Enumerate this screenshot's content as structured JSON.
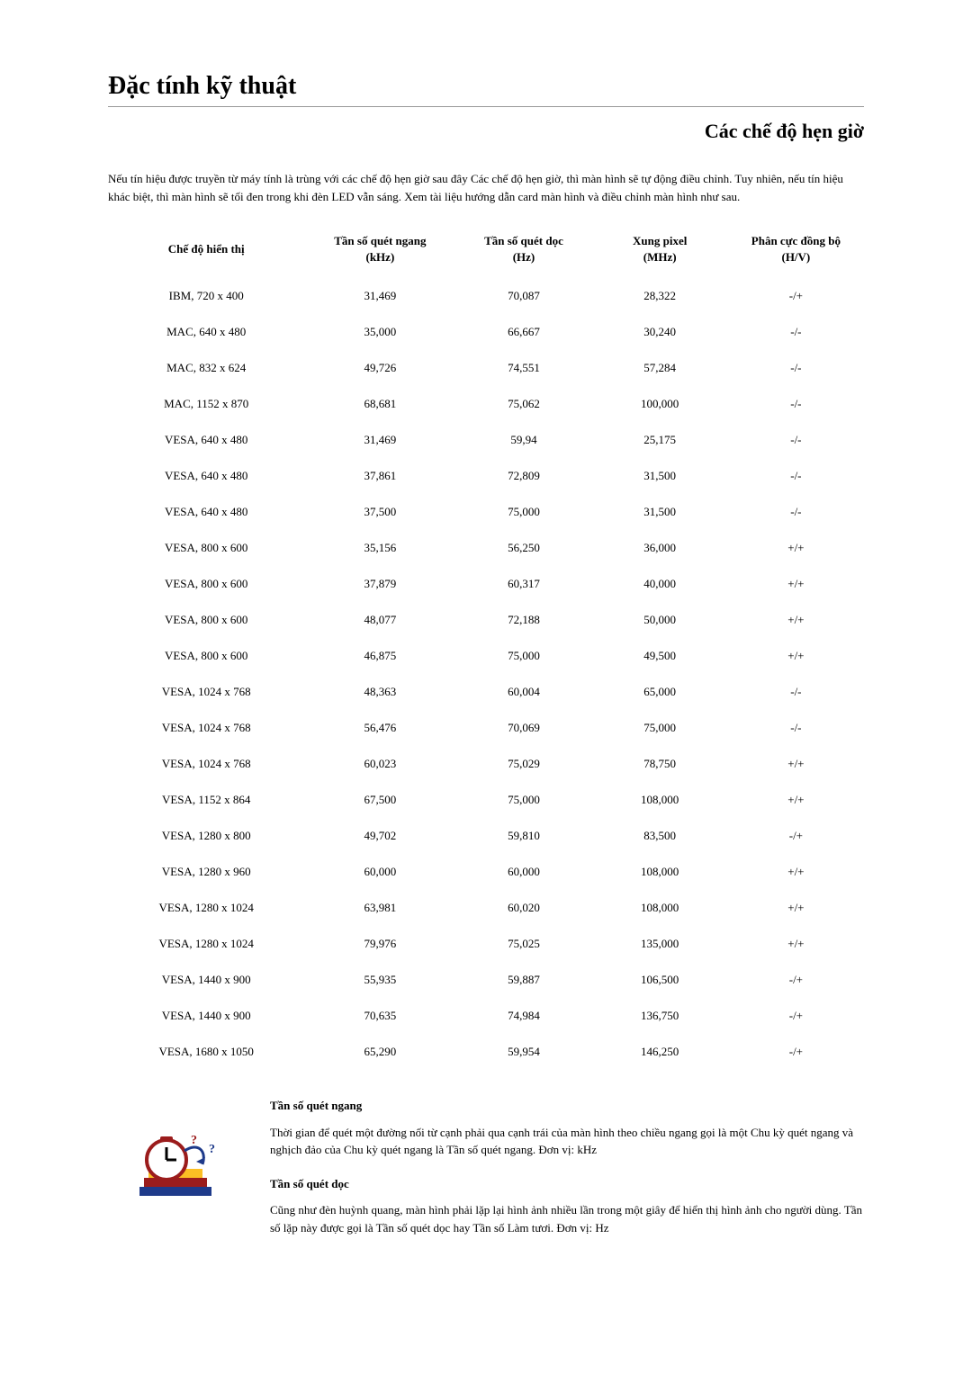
{
  "title": "Đặc tính kỹ thuật",
  "section_title": "Các chế độ hẹn giờ",
  "intro": "Nếu tín hiệu được truyền từ máy tính là trùng với các chế độ hẹn giờ sau đây Các chế độ hẹn giờ, thì màn hình sẽ tự động điều chỉnh. Tuy nhiên, nếu tín hiệu khác biệt, thì màn hình sẽ tối đen trong khi đèn LED vẫn sáng. Xem tài liệu hướng dẫn card màn hình và điều chỉnh màn hình như sau.",
  "table": {
    "columns": [
      "Chế độ hiển thị",
      "Tần số quét ngang (kHz)",
      "Tần số quét dọc (Hz)",
      "Xung pixel (MHz)",
      "Phân cực đồng bộ (H/V)"
    ],
    "rows": [
      [
        "IBM, 720 x 400",
        "31,469",
        "70,087",
        "28,322",
        "-/+"
      ],
      [
        "MAC, 640 x 480",
        "35,000",
        "66,667",
        "30,240",
        "-/-"
      ],
      [
        "MAC, 832 x 624",
        "49,726",
        "74,551",
        "57,284",
        "-/-"
      ],
      [
        "MAC, 1152 x 870",
        "68,681",
        "75,062",
        "100,000",
        "-/-"
      ],
      [
        "VESA, 640 x 480",
        "31,469",
        "59,94",
        "25,175",
        "-/-"
      ],
      [
        "VESA, 640 x 480",
        "37,861",
        "72,809",
        "31,500",
        "-/-"
      ],
      [
        "VESA, 640 x 480",
        "37,500",
        "75,000",
        "31,500",
        "-/-"
      ],
      [
        "VESA, 800 x 600",
        "35,156",
        "56,250",
        "36,000",
        "+/+"
      ],
      [
        "VESA, 800 x 600",
        "37,879",
        "60,317",
        "40,000",
        "+/+"
      ],
      [
        "VESA, 800 x 600",
        "48,077",
        "72,188",
        "50,000",
        "+/+"
      ],
      [
        "VESA, 800 x 600",
        "46,875",
        "75,000",
        "49,500",
        "+/+"
      ],
      [
        "VESA, 1024 x 768",
        "48,363",
        "60,004",
        "65,000",
        "-/-"
      ],
      [
        "VESA, 1024 x 768",
        "56,476",
        "70,069",
        "75,000",
        "-/-"
      ],
      [
        "VESA, 1024 x 768",
        "60,023",
        "75,029",
        "78,750",
        "+/+"
      ],
      [
        "VESA, 1152 x 864",
        "67,500",
        "75,000",
        "108,000",
        "+/+"
      ],
      [
        "VESA, 1280 x 800",
        "49,702",
        "59,810",
        "83,500",
        "-/+"
      ],
      [
        "VESA, 1280 x 960",
        "60,000",
        "60,000",
        "108,000",
        "+/+"
      ],
      [
        "VESA, 1280 x 1024",
        "63,981",
        "60,020",
        "108,000",
        "+/+"
      ],
      [
        "VESA, 1280 x 1024",
        "79,976",
        "75,025",
        "135,000",
        "+/+"
      ],
      [
        "VESA, 1440 x 900",
        "55,935",
        "59,887",
        "106,500",
        "-/+"
      ],
      [
        "VESA, 1440 x 900",
        "70,635",
        "74,984",
        "136,750",
        "-/+"
      ],
      [
        "VESA, 1680 x 1050",
        "65,290",
        "59,954",
        "146,250",
        "-/+"
      ]
    ],
    "col_widths": [
      "26%",
      "20%",
      "18%",
      "18%",
      "18%"
    ],
    "header_fontsize": 13,
    "cell_fontsize": 13
  },
  "definitions": {
    "h_title": "Tần số quét ngang",
    "h_text": "Thời gian để quét một đường nối từ cạnh phải qua cạnh trái của màn hình theo chiều ngang gọi là một Chu kỳ quét ngang và nghịch đảo của Chu kỳ quét ngang là Tần số quét ngang. Đơn vị: kHz",
    "v_title": "Tần số quét dọc",
    "v_text": "Cũng như đèn huỳnh quang, màn hình phải lặp lại hình ảnh nhiều lần trong một giây để hiển thị hình ảnh cho người dùng. Tần số lặp này được gọi là Tần số quét dọc hay Tần số Làm tươi. Đơn vị: Hz"
  },
  "colors": {
    "text": "#000000",
    "rule": "#999999",
    "background": "#ffffff",
    "icon_red": "#9b1c1c",
    "icon_blue": "#1e3a8a",
    "icon_yellow": "#fbbf24"
  }
}
